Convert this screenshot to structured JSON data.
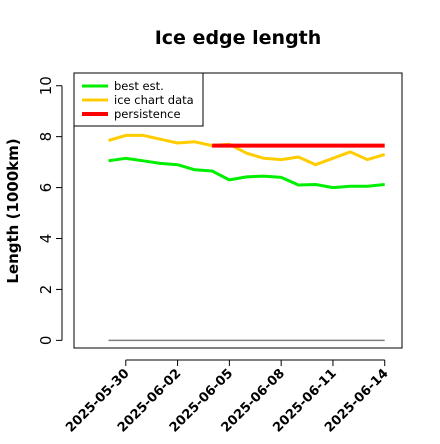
{
  "chart_data": {
    "type": "line",
    "title": "Ice edge length",
    "xlabel": "",
    "ylabel": "Length (1000km)",
    "xlim": [
      "2025-05-27",
      "2025-06-15"
    ],
    "ylim": [
      -0.3,
      10.5
    ],
    "grid": false,
    "legend_position": "top-left",
    "x_ticks": [
      "2025-05-30",
      "2025-06-02",
      "2025-06-05",
      "2025-06-08",
      "2025-06-11",
      "2025-06-14"
    ],
    "y_ticks": [
      "0",
      "2",
      "4",
      "6",
      "8",
      "10"
    ],
    "series": [
      {
        "name": "best est.",
        "color": "#00ee00",
        "x": [
          "2025-05-29",
          "2025-05-30",
          "2025-05-31",
          "2025-06-01",
          "2025-06-02",
          "2025-06-03",
          "2025-06-04",
          "2025-06-05",
          "2025-06-06",
          "2025-06-07",
          "2025-06-08",
          "2025-06-09",
          "2025-06-10",
          "2025-06-11",
          "2025-06-12",
          "2025-06-13",
          "2025-06-14"
        ],
        "y": [
          7.05,
          7.15,
          7.05,
          6.95,
          6.9,
          6.7,
          6.65,
          6.3,
          6.42,
          6.45,
          6.4,
          6.1,
          6.12,
          6.0,
          6.05,
          6.05,
          6.12
        ]
      },
      {
        "name": "ice chart data",
        "color": "#ffcc00",
        "x": [
          "2025-05-29",
          "2025-05-30",
          "2025-05-31",
          "2025-06-01",
          "2025-06-02",
          "2025-06-03",
          "2025-06-04",
          "2025-06-05",
          "2025-06-06",
          "2025-06-07",
          "2025-06-08",
          "2025-06-09",
          "2025-06-10",
          "2025-06-11",
          "2025-06-12",
          "2025-06-13",
          "2025-06-14"
        ],
        "y": [
          7.85,
          8.05,
          8.05,
          7.9,
          7.75,
          7.8,
          7.65,
          7.7,
          7.35,
          7.15,
          7.1,
          7.2,
          6.9,
          7.15,
          7.4,
          7.1,
          7.3
        ]
      },
      {
        "name": "persistence",
        "color": "#ff0000",
        "x": [
          "2025-06-04",
          "2025-06-14"
        ],
        "y": [
          7.65,
          7.65
        ]
      },
      {
        "name": "",
        "color": "#808080",
        "x": [
          "2025-05-29",
          "2025-06-14"
        ],
        "y": [
          0,
          0
        ]
      }
    ]
  }
}
